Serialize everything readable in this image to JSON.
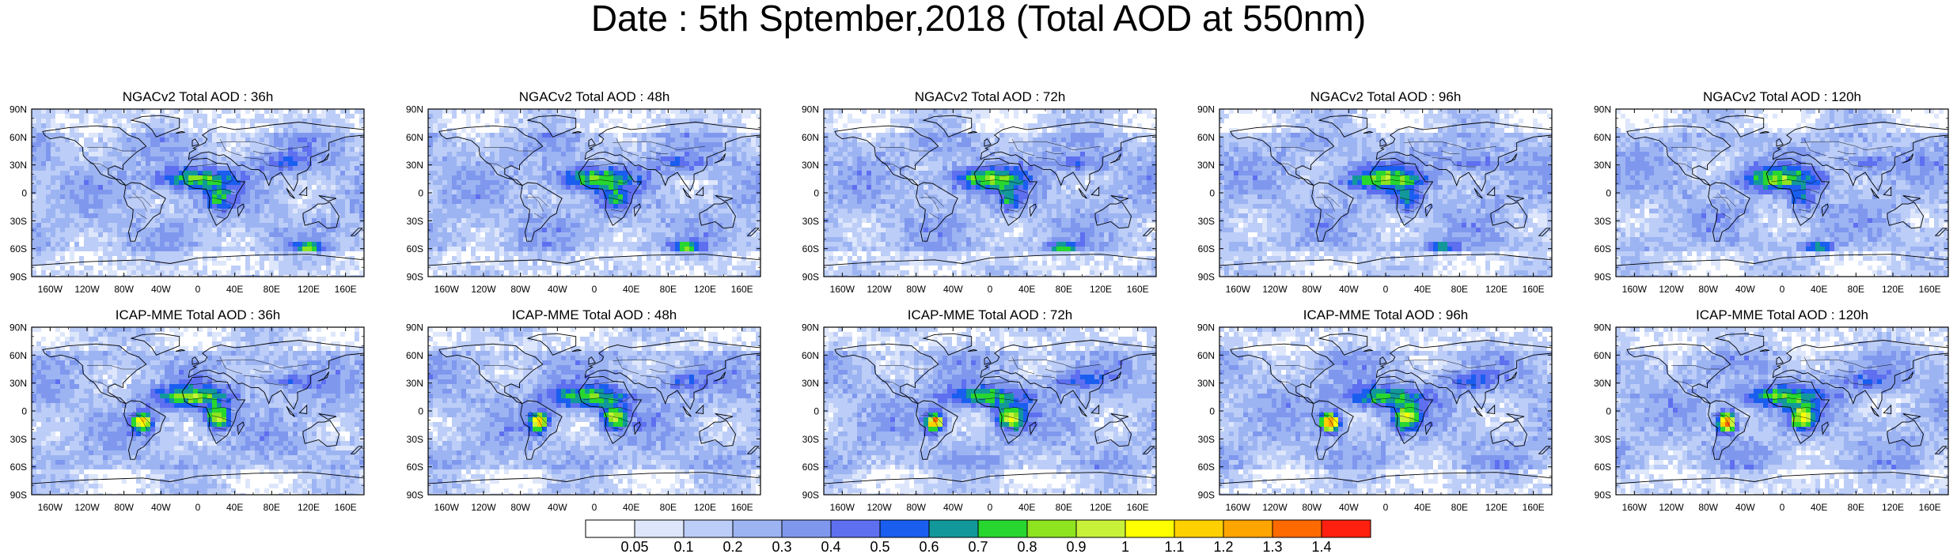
{
  "title": "Date : 5th Sptember,2018 (Total AOD at 550nm)",
  "lat_labels": [
    "90N",
    "60N",
    "30N",
    "0",
    "30S",
    "60S",
    "90S"
  ],
  "lon_labels": [
    "160W",
    "120W",
    "80W",
    "40W",
    "0",
    "40E",
    "80E",
    "120E",
    "160E"
  ],
  "panels": [
    {
      "title": "NGACv2 Total AOD : 36h",
      "model": "NGACv2",
      "lead": "36h"
    },
    {
      "title": "NGACv2 Total AOD : 48h",
      "model": "NGACv2",
      "lead": "48h"
    },
    {
      "title": "NGACv2 Total AOD : 72h",
      "model": "NGACv2",
      "lead": "72h"
    },
    {
      "title": "NGACv2 Total AOD : 96h",
      "model": "NGACv2",
      "lead": "96h"
    },
    {
      "title": "NGACv2 Total AOD : 120h",
      "model": "NGACv2",
      "lead": "120h"
    },
    {
      "title": "ICAP-MME Total AOD : 36h",
      "model": "ICAP-MME",
      "lead": "36h"
    },
    {
      "title": "ICAP-MME Total AOD : 48h",
      "model": "ICAP-MME",
      "lead": "48h"
    },
    {
      "title": "ICAP-MME Total AOD : 72h",
      "model": "ICAP-MME",
      "lead": "72h"
    },
    {
      "title": "ICAP-MME Total AOD : 96h",
      "model": "ICAP-MME",
      "lead": "96h"
    },
    {
      "title": "ICAP-MME Total AOD : 120h",
      "model": "ICAP-MME",
      "lead": "120h"
    }
  ],
  "colorbar": {
    "labels": [
      "0.05",
      "0.1",
      "0.2",
      "0.3",
      "0.4",
      "0.5",
      "0.6",
      "0.7",
      "0.8",
      "0.9",
      "1",
      "1.1",
      "1.2",
      "1.3",
      "1.4"
    ],
    "colors": [
      "#ffffff",
      "#dde6fb",
      "#bccdf7",
      "#9db4f2",
      "#7f98ee",
      "#5e6ff0",
      "#1a5ef0",
      "#12989a",
      "#28d630",
      "#8de41f",
      "#c8f23a",
      "#ffff00",
      "#ffd000",
      "#ffa500",
      "#ff6a00",
      "#ff2010"
    ]
  }
}
